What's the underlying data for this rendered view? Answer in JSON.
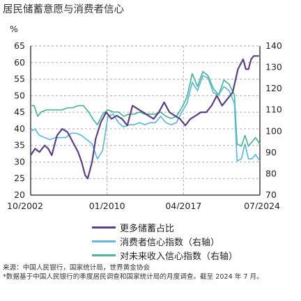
{
  "title": "居民储蓄意愿与消费者信心",
  "chart_data": {
    "type": "line",
    "left_axis": {
      "unit_label": "%",
      "min": 20,
      "max": 65,
      "ticks": [
        20,
        25,
        30,
        35,
        40,
        45,
        50,
        55,
        60,
        65
      ]
    },
    "right_axis": {
      "min": 70,
      "max": 140,
      "ticks": [
        70,
        80,
        90,
        100,
        110,
        120,
        130,
        140
      ]
    },
    "x_axis": {
      "start": "10/2002",
      "end": "07/2024",
      "tick_labels": [
        "10/2002",
        "01/2010",
        "04/2017",
        "07/2024"
      ]
    },
    "grid": true,
    "colors": {
      "savings": "#5b3f86",
      "consumer": "#5fb8de",
      "income": "#4cb596"
    },
    "series": [
      {
        "name": "更多储蓄占比",
        "axis": "left",
        "color": "#5b3f86",
        "points": [
          [
            "2002-10",
            32
          ],
          [
            "2003-03",
            34
          ],
          [
            "2003-08",
            33
          ],
          [
            "2004-02",
            35
          ],
          [
            "2004-06",
            34
          ],
          [
            "2004-10",
            32
          ],
          [
            "2005-04",
            38
          ],
          [
            "2005-10",
            40
          ],
          [
            "2006-04",
            39
          ],
          [
            "2006-10",
            36
          ],
          [
            "2007-04",
            33
          ],
          [
            "2007-08",
            30
          ],
          [
            "2007-12",
            26
          ],
          [
            "2008-03",
            25
          ],
          [
            "2008-08",
            30
          ],
          [
            "2008-12",
            37
          ],
          [
            "2009-06",
            42
          ],
          [
            "2009-12",
            45
          ],
          [
            "2010-06",
            43
          ],
          [
            "2010-12",
            44
          ],
          [
            "2011-06",
            43
          ],
          [
            "2011-12",
            41
          ],
          [
            "2012-06",
            47
          ],
          [
            "2012-12",
            46
          ],
          [
            "2013-06",
            45
          ],
          [
            "2013-12",
            44
          ],
          [
            "2014-06",
            43
          ],
          [
            "2014-12",
            45
          ],
          [
            "2015-06",
            48
          ],
          [
            "2015-12",
            45
          ],
          [
            "2016-06",
            44
          ],
          [
            "2016-12",
            43
          ],
          [
            "2017-06",
            41
          ],
          [
            "2017-12",
            43
          ],
          [
            "2018-06",
            44
          ],
          [
            "2018-12",
            45
          ],
          [
            "2019-06",
            45
          ],
          [
            "2019-12",
            47
          ],
          [
            "2020-06",
            50
          ],
          [
            "2020-12",
            47
          ],
          [
            "2021-06",
            49
          ],
          [
            "2021-12",
            51
          ],
          [
            "2022-06",
            58
          ],
          [
            "2022-12",
            61
          ],
          [
            "2023-03",
            58
          ],
          [
            "2023-06",
            58
          ],
          [
            "2023-09",
            61
          ],
          [
            "2023-12",
            62
          ],
          [
            "2024-03",
            62
          ],
          [
            "2024-06",
            62
          ]
        ]
      },
      {
        "name": "消费者信心指数（右轴）",
        "axis": "right",
        "color": "#5fb8de",
        "points": [
          [
            "2002-10",
            100
          ],
          [
            "2003-03",
            101
          ],
          [
            "2003-08",
            98
          ],
          [
            "2004-02",
            97
          ],
          [
            "2004-08",
            96
          ],
          [
            "2005-02",
            97
          ],
          [
            "2005-08",
            97
          ],
          [
            "2006-02",
            97
          ],
          [
            "2006-08",
            99
          ],
          [
            "2007-02",
            99
          ],
          [
            "2007-08",
            98
          ],
          [
            "2008-02",
            96
          ],
          [
            "2008-08",
            94
          ],
          [
            "2009-02",
            87
          ],
          [
            "2009-08",
            91
          ],
          [
            "2010-02",
            107
          ],
          [
            "2010-08",
            108
          ],
          [
            "2011-02",
            104
          ],
          [
            "2011-08",
            102
          ],
          [
            "2012-02",
            103
          ],
          [
            "2012-08",
            103
          ],
          [
            "2013-02",
            104
          ],
          [
            "2013-08",
            103
          ],
          [
            "2014-02",
            104
          ],
          [
            "2014-08",
            104
          ],
          [
            "2015-02",
            107
          ],
          [
            "2015-08",
            104
          ],
          [
            "2016-02",
            103
          ],
          [
            "2016-08",
            104
          ],
          [
            "2017-02",
            109
          ],
          [
            "2017-08",
            113
          ],
          [
            "2018-02",
            123
          ],
          [
            "2018-08",
            119
          ],
          [
            "2019-02",
            126
          ],
          [
            "2019-08",
            125
          ],
          [
            "2020-02",
            118
          ],
          [
            "2020-08",
            117
          ],
          [
            "2021-02",
            121
          ],
          [
            "2021-08",
            119
          ],
          [
            "2022-02",
            113
          ],
          [
            "2022-05",
            86
          ],
          [
            "2022-10",
            87
          ],
          [
            "2023-02",
            94
          ],
          [
            "2023-06",
            87
          ],
          [
            "2023-10",
            87
          ],
          [
            "2024-02",
            89
          ],
          [
            "2024-07",
            86
          ]
        ]
      },
      {
        "name": "对未来收入信心指数（右轴）",
        "axis": "right",
        "color": "#4cb596",
        "points": [
          [
            "2002-10",
            112
          ],
          [
            "2003-02",
            112
          ],
          [
            "2003-06",
            107
          ],
          [
            "2003-10",
            109
          ],
          [
            "2004-04",
            110
          ],
          [
            "2004-10",
            110
          ],
          [
            "2005-04",
            110
          ],
          [
            "2005-10",
            110
          ],
          [
            "2006-04",
            111
          ],
          [
            "2006-10",
            111
          ],
          [
            "2007-04",
            112
          ],
          [
            "2007-10",
            112
          ],
          [
            "2008-04",
            109
          ],
          [
            "2008-10",
            105
          ],
          [
            "2009-02",
            103
          ],
          [
            "2009-08",
            108
          ],
          [
            "2010-02",
            110
          ],
          [
            "2010-08",
            109
          ],
          [
            "2011-02",
            109
          ],
          [
            "2011-08",
            107
          ],
          [
            "2012-02",
            108
          ],
          [
            "2012-08",
            108
          ],
          [
            "2013-02",
            109
          ],
          [
            "2013-08",
            108
          ],
          [
            "2014-02",
            108
          ],
          [
            "2014-08",
            108
          ],
          [
            "2015-02",
            109
          ],
          [
            "2015-08",
            107
          ],
          [
            "2016-02",
            106
          ],
          [
            "2016-08",
            107
          ],
          [
            "2017-02",
            111
          ],
          [
            "2017-08",
            116
          ],
          [
            "2018-02",
            127
          ],
          [
            "2018-08",
            121
          ],
          [
            "2019-02",
            128
          ],
          [
            "2019-08",
            126
          ],
          [
            "2020-02",
            120
          ],
          [
            "2020-08",
            117
          ],
          [
            "2021-02",
            124
          ],
          [
            "2021-08",
            122
          ],
          [
            "2022-02",
            117
          ],
          [
            "2022-05",
            94
          ],
          [
            "2022-10",
            93
          ],
          [
            "2023-02",
            98
          ],
          [
            "2023-06",
            93
          ],
          [
            "2023-10",
            95
          ],
          [
            "2024-02",
            97
          ],
          [
            "2024-07",
            94
          ]
        ]
      }
    ]
  },
  "footer": {
    "source": "来源：中国人民银行，国家统计局，世界黄金协会",
    "note": "*数据基于中国人民银行的季度居民调查和国家统计局的月度调查。截至 2024 年 7 月。"
  }
}
